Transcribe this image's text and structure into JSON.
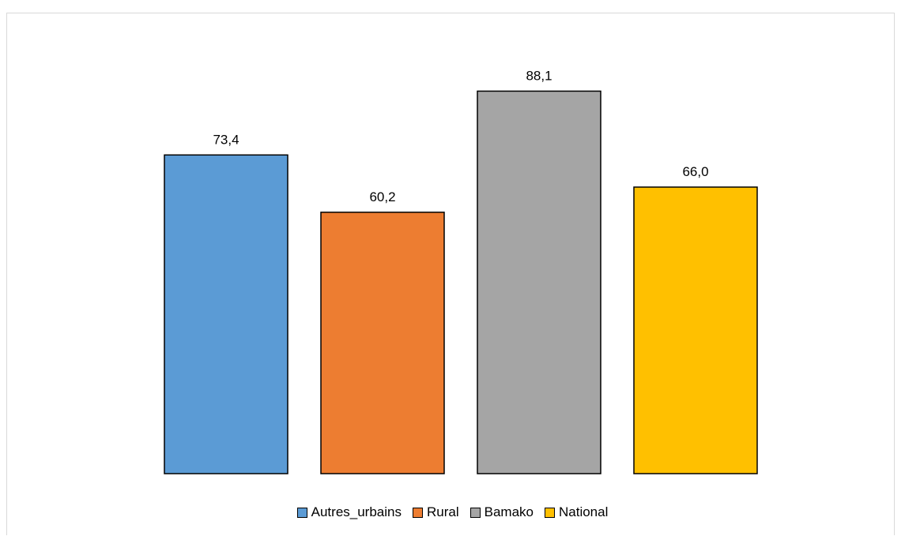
{
  "chart_data": {
    "type": "bar",
    "categories": [
      "Autres_urbains",
      "Rural",
      "Bamako",
      "National"
    ],
    "values": [
      73.4,
      60.2,
      88.1,
      66.0
    ],
    "labels": [
      "73,4",
      "60,2",
      "88,1",
      "66,0"
    ],
    "colors": [
      "#5b9bd5",
      "#ed7d31",
      "#a5a5a5",
      "#ffc000"
    ],
    "title": "",
    "xlabel": "",
    "ylabel": "",
    "ylim": [
      0,
      100
    ],
    "grid": false,
    "legend_position": "bottom"
  }
}
